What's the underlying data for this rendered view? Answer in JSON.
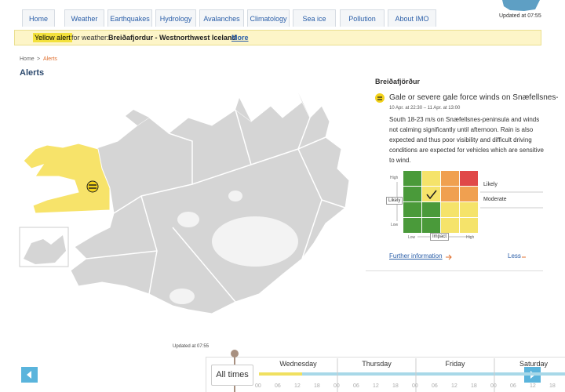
{
  "nav": {
    "items": [
      "Home",
      "Weather",
      "Earthquakes",
      "Hydrology",
      "Avalanches",
      "Climatology",
      "Sea ice",
      "Pollution",
      "About IMO"
    ],
    "updated": "Updated at 07:55"
  },
  "banner": {
    "level": "Yellow alert",
    "text": "for weather:",
    "region": "Breiðafjordur - Westnorthwest Iceland",
    "link": "More"
  },
  "breadcrumb": {
    "items": [
      "Home",
      "Alerts"
    ],
    "separator": ">"
  },
  "page_title": "Alerts",
  "alert": {
    "region": "Breiðafjörður",
    "headline": "Gale or severe gale force winds on Snæfellsnes-per",
    "period": "10 Apr. at 22:30 – 11 Apr. at 13:00",
    "description": "South 18-23 m/s on Snæfellsnes-peninsula and winds not calming significantly until afternoon. Rain is also expected and thus poor visibility and difficult driving conditions are expected for vehicles which are sensitive to wind.",
    "matrix": {
      "likelihood_high": "High",
      "likelihood_label": "Likely",
      "likelihood_low": "Low",
      "impact_low": "Low",
      "impact_label": "Impact",
      "impact_high": "High"
    },
    "legend": [
      "Likely",
      "Moderate"
    ],
    "more_link": "Further information",
    "less_link": "Less"
  },
  "timeline": {
    "updated": "Updated at 07:55",
    "all_times": "All times",
    "days": [
      "Wednesday",
      "Thursday",
      "Friday",
      "Saturday"
    ],
    "hours": [
      "00",
      "06",
      "12",
      "18"
    ]
  }
}
